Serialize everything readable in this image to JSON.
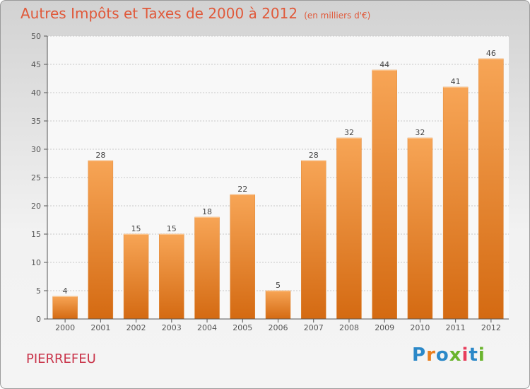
{
  "title": "Autres Impôts et Taxes de 2000 à 2012",
  "subtitle": "(en milliers d'€)",
  "commune": "PIERREFEU",
  "logo": {
    "text": "Proxiti",
    "letter_colors": [
      "#2b88c8",
      "#e97e1e",
      "#2b88c8",
      "#6ab42d",
      "#e83d5c",
      "#2b88c8",
      "#6ab42d"
    ]
  },
  "colors": {
    "bar_top": "#f7a556",
    "bar_bottom": "#d46a12",
    "axis": "#555555",
    "grid": "#c8c8c8"
  },
  "chart_data": {
    "type": "bar",
    "title": "Autres Impôts et Taxes de 2000 à 2012",
    "categories": [
      "2000",
      "2001",
      "2002",
      "2003",
      "2004",
      "2005",
      "2006",
      "2007",
      "2008",
      "2009",
      "2010",
      "2011",
      "2012"
    ],
    "values": [
      4,
      28,
      15,
      15,
      18,
      22,
      5,
      28,
      32,
      44,
      32,
      41,
      46
    ],
    "ylim": [
      0,
      50
    ],
    "yticks": [
      0,
      5,
      10,
      15,
      20,
      25,
      30,
      35,
      40,
      45,
      50
    ],
    "grid": true,
    "data_labels": true
  }
}
